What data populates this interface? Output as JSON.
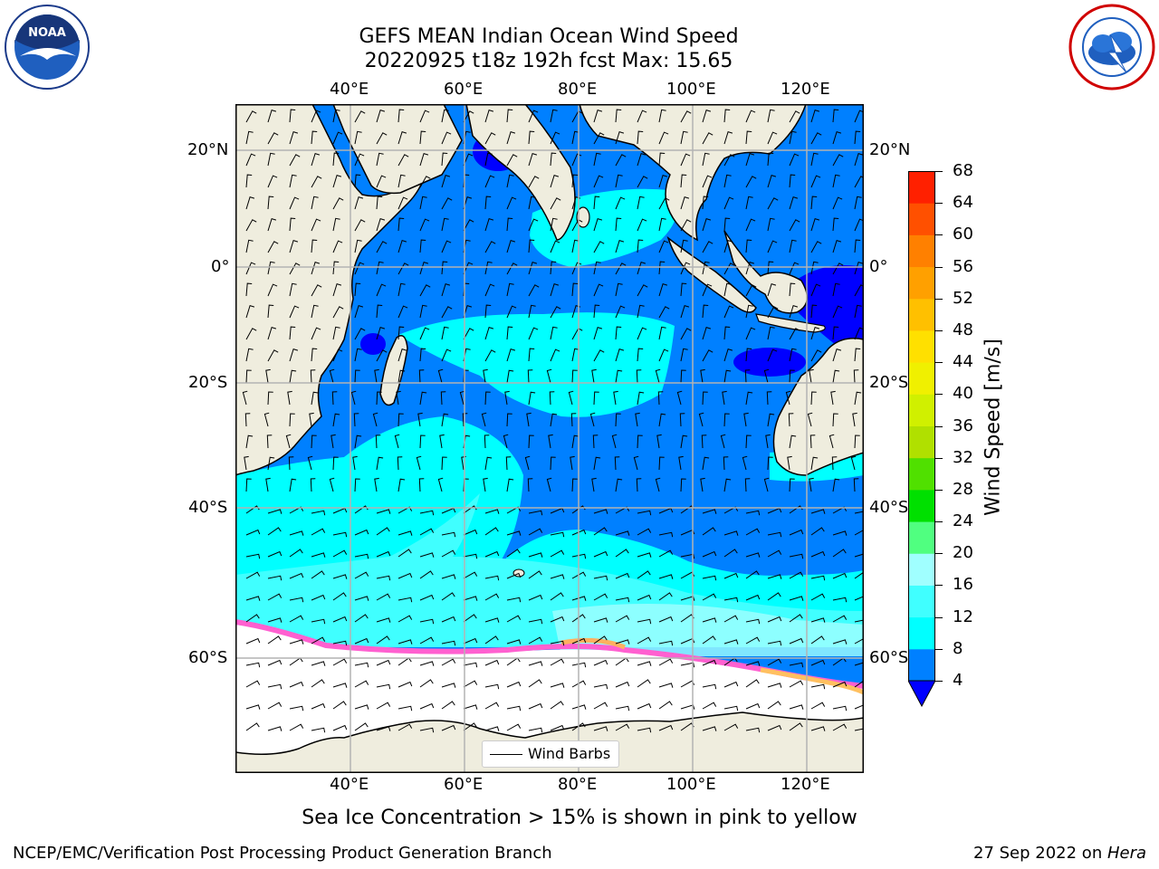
{
  "title": {
    "line1": "GEFS MEAN Indian Ocean Wind Speed",
    "line2": "20220925 t18z 192h fcst   Max: 15.65"
  },
  "logos": {
    "left_icon": "noaa-logo-icon",
    "left_text": "NOAA",
    "right_icon": "national-weather-service-logo-icon"
  },
  "map": {
    "lon_ticks": [
      "40°E",
      "60°E",
      "80°E",
      "100°E",
      "120°E"
    ],
    "lat_ticks": [
      "20°N",
      "0°",
      "20°S",
      "40°S",
      "60°S"
    ],
    "land_color": "#efedde",
    "grid_color": "#b3b3b3"
  },
  "colorbar": {
    "label": "Wind Speed [m/s]",
    "ticks": [
      "4",
      "8",
      "12",
      "16",
      "20",
      "24",
      "28",
      "32",
      "36",
      "40",
      "44",
      "48",
      "52",
      "56",
      "60",
      "64",
      "68"
    ],
    "colors": [
      "#0080ff",
      "#00ffff",
      "#40ffff",
      "#a0ffff",
      "#50ff80",
      "#00e000",
      "#50e000",
      "#b0e000",
      "#d0f000",
      "#f0f000",
      "#ffe000",
      "#ffc000",
      "#ffa000",
      "#ff8000",
      "#ff5000",
      "#ff2000"
    ],
    "under_color": "#0000ff"
  },
  "legend": {
    "label": "Wind Barbs"
  },
  "caption": "Sea Ice Concentration > 15% is shown in pink to yellow",
  "footer": {
    "left": "NCEP/EMC/Verification Post Processing Product Generation Branch",
    "right_date": "27 Sep 2022 on ",
    "right_host": "Hera"
  }
}
